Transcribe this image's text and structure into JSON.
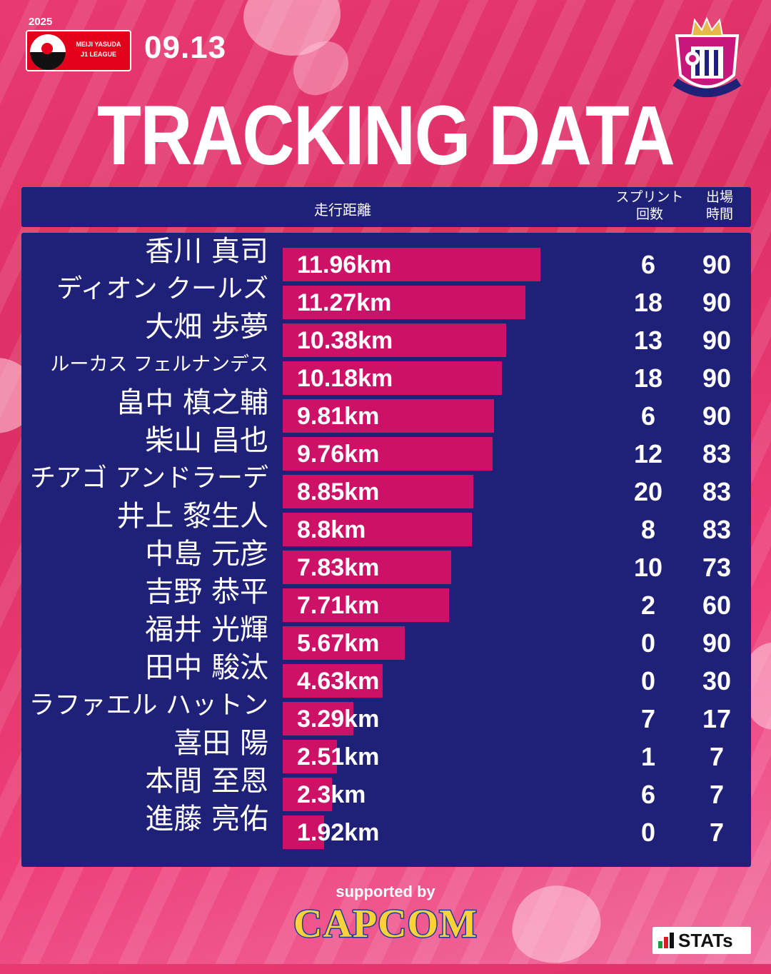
{
  "league": {
    "year": "2025",
    "name_line1": "MEIJI YASUDA",
    "name_line2": "J1 LEAGUE"
  },
  "match_date": "09.13",
  "club_crest": {
    "text": "CEREZO OSAKA"
  },
  "title": "TRACKING DATA",
  "columns": {
    "distance": "走行距離",
    "sprint_line1": "スプリント",
    "sprint_line2": "回数",
    "minutes_line1": "出場",
    "minutes_line2": "時間"
  },
  "colors": {
    "background": "#e83a72",
    "panel": "#1f2178",
    "bar": "#cc1166",
    "text": "#ffffff"
  },
  "chart_data": {
    "type": "bar",
    "orientation": "horizontal",
    "title": "TRACKING DATA",
    "unit": "km",
    "categories": [
      "香川 真司",
      "ディオン クールズ",
      "大畑 歩夢",
      "ルーカス フェルナンデス",
      "畠中 槙之輔",
      "柴山 昌也",
      "チアゴ アンドラーデ",
      "井上 黎生人",
      "中島 元彦",
      "吉野 恭平",
      "福井 光輝",
      "田中 駿汰",
      "ラファエル ハットン",
      "喜田 陽",
      "本間 至恩",
      "進藤 亮佑"
    ],
    "values": [
      11.96,
      11.27,
      10.38,
      10.18,
      9.81,
      9.76,
      8.85,
      8.8,
      7.83,
      7.71,
      5.67,
      4.63,
      3.29,
      2.51,
      2.3,
      1.92
    ],
    "xlim": [
      0,
      12
    ],
    "players": [
      {
        "name": "香川 真司",
        "distance": "11.96km",
        "sprints": "6",
        "minutes": "90"
      },
      {
        "name": "ディオン クールズ",
        "distance": "11.27km",
        "sprints": "18",
        "minutes": "90"
      },
      {
        "name": "大畑 歩夢",
        "distance": "10.38km",
        "sprints": "13",
        "minutes": "90"
      },
      {
        "name": "ルーカス フェルナンデス",
        "distance": "10.18km",
        "sprints": "18",
        "minutes": "90"
      },
      {
        "name": "畠中 槙之輔",
        "distance": "9.81km",
        "sprints": "6",
        "minutes": "90"
      },
      {
        "name": "柴山 昌也",
        "distance": "9.76km",
        "sprints": "12",
        "minutes": "83"
      },
      {
        "name": "チアゴ アンドラーデ",
        "distance": "8.85km",
        "sprints": "20",
        "minutes": "83"
      },
      {
        "name": "井上 黎生人",
        "distance": "8.8km",
        "sprints": "8",
        "minutes": "83"
      },
      {
        "name": "中島 元彦",
        "distance": "7.83km",
        "sprints": "10",
        "minutes": "73"
      },
      {
        "name": "吉野 恭平",
        "distance": "7.71km",
        "sprints": "2",
        "minutes": "60"
      },
      {
        "name": "福井 光輝",
        "distance": "5.67km",
        "sprints": "0",
        "minutes": "90"
      },
      {
        "name": "田中 駿汰",
        "distance": "4.63km",
        "sprints": "0",
        "minutes": "30"
      },
      {
        "name": "ラファエル ハットン",
        "distance": "3.29km",
        "sprints": "7",
        "minutes": "17"
      },
      {
        "name": "喜田 陽",
        "distance": "2.51km",
        "sprints": "1",
        "minutes": "7"
      },
      {
        "name": "本間 至恩",
        "distance": "2.3km",
        "sprints": "6",
        "minutes": "7"
      },
      {
        "name": "進藤 亮佑",
        "distance": "1.92km",
        "sprints": "0",
        "minutes": "7"
      }
    ]
  },
  "footer": {
    "supported_by": "supported by",
    "sponsor": "CAPCOM",
    "provider": "STATs"
  }
}
